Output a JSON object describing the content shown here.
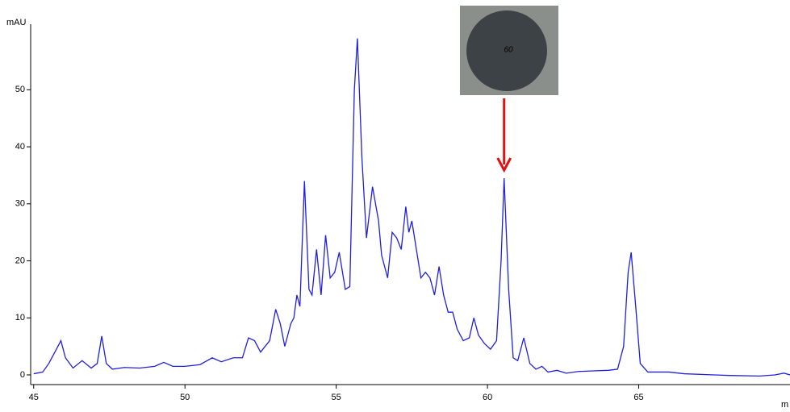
{
  "chart_data": {
    "type": "line",
    "y_label": "mAU",
    "x_label": "m",
    "annotation": "60",
    "xlim": [
      44.9,
      70
    ],
    "ylim": [
      -1.7,
      61.5
    ],
    "xticks": [
      45,
      50,
      55,
      60,
      65
    ],
    "yticks": [
      0,
      10,
      20,
      30,
      40,
      50
    ],
    "annotation_x": 60.55,
    "series": [
      {
        "color": "#1f1fe0",
        "x": [
          45.0,
          45.3,
          45.5,
          45.7,
          45.9,
          46.05,
          46.3,
          46.6,
          46.9,
          47.1,
          47.25,
          47.4,
          47.6,
          48.0,
          48.5,
          49.0,
          49.3,
          49.6,
          50.0,
          50.5,
          50.9,
          51.2,
          51.6,
          51.9,
          52.1,
          52.3,
          52.5,
          52.8,
          53.0,
          53.15,
          53.3,
          53.5,
          53.6,
          53.7,
          53.8,
          53.95,
          54.1,
          54.2,
          54.35,
          54.5,
          54.65,
          54.8,
          54.95,
          55.1,
          55.3,
          55.45,
          55.6,
          55.7,
          55.85,
          56.0,
          56.2,
          56.4,
          56.5,
          56.7,
          56.85,
          57.0,
          57.15,
          57.3,
          57.4,
          57.5,
          57.65,
          57.8,
          57.95,
          58.1,
          58.25,
          58.4,
          58.55,
          58.7,
          58.85,
          59.0,
          59.2,
          59.4,
          59.55,
          59.7,
          59.9,
          60.1,
          60.3,
          60.45,
          60.55,
          60.7,
          60.85,
          61.0,
          61.2,
          61.4,
          61.6,
          61.8,
          62.0,
          62.3,
          62.6,
          63.0,
          63.5,
          64.0,
          64.3,
          64.5,
          64.65,
          64.75,
          64.9,
          65.05,
          65.3,
          66.0,
          66.5,
          67.5,
          68.0,
          69.0,
          69.5,
          69.8,
          70.0
        ],
        "values": [
          0.2,
          0.5,
          2,
          4,
          6,
          3,
          1.2,
          2.5,
          1.2,
          2,
          6.8,
          2,
          1,
          1.3,
          1.2,
          1.5,
          2.2,
          1.5,
          1.5,
          1.8,
          3,
          2.3,
          3,
          3,
          6.5,
          6,
          4,
          6,
          11.5,
          9,
          5,
          9,
          10,
          14,
          12,
          34,
          15,
          14,
          22,
          14,
          24.5,
          17,
          18,
          21.5,
          15,
          15.5,
          50,
          59,
          38,
          24,
          33,
          27,
          21,
          17,
          25,
          24,
          22,
          29.5,
          25,
          27,
          22,
          17,
          18,
          17,
          14,
          19,
          14,
          11,
          11,
          8,
          6,
          6.5,
          10,
          7,
          5.5,
          4.5,
          6,
          20,
          34.5,
          15,
          3,
          2.5,
          6.5,
          2,
          1,
          1.5,
          0.5,
          0.8,
          0.3,
          0.6,
          0.7,
          0.8,
          1,
          5,
          18,
          21.5,
          12,
          2,
          0.5,
          0.5,
          0.2,
          0,
          -0.1,
          -0.2,
          0,
          0.3,
          0
        ]
      }
    ]
  }
}
